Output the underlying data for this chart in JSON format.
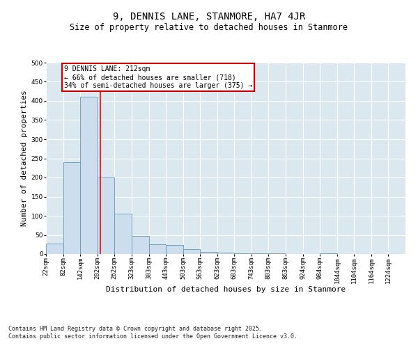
{
  "title": "9, DENNIS LANE, STANMORE, HA7 4JR",
  "subtitle": "Size of property relative to detached houses in Stanmore",
  "xlabel": "Distribution of detached houses by size in Stanmore",
  "ylabel": "Number of detached properties",
  "bin_labels": [
    "22sqm",
    "82sqm",
    "142sqm",
    "202sqm",
    "262sqm",
    "323sqm",
    "383sqm",
    "443sqm",
    "503sqm",
    "563sqm",
    "623sqm",
    "683sqm",
    "743sqm",
    "803sqm",
    "863sqm",
    "924sqm",
    "984sqm",
    "1044sqm",
    "1104sqm",
    "1164sqm",
    "1224sqm"
  ],
  "bar_heights": [
    27,
    240,
    410,
    200,
    105,
    48,
    25,
    24,
    12,
    5,
    4,
    2,
    1,
    1,
    0,
    0,
    1,
    0,
    0,
    0,
    0
  ],
  "bin_edges": [
    22,
    82,
    142,
    202,
    262,
    323,
    383,
    443,
    503,
    563,
    623,
    683,
    743,
    803,
    863,
    924,
    984,
    1044,
    1104,
    1164,
    1224,
    1284
  ],
  "bar_color": "#ccdded",
  "bar_edge_color": "#6699bb",
  "red_line_x": 212,
  "ylim": [
    0,
    500
  ],
  "yticks": [
    0,
    50,
    100,
    150,
    200,
    250,
    300,
    350,
    400,
    450,
    500
  ],
  "annotation_line1": "9 DENNIS LANE: 212sqm",
  "annotation_line2": "← 66% of detached houses are smaller (718)",
  "annotation_line3": "34% of semi-detached houses are larger (375) →",
  "annotation_box_color": "#ffffff",
  "annotation_box_edge": "#cc0000",
  "footer_line1": "Contains HM Land Registry data © Crown copyright and database right 2025.",
  "footer_line2": "Contains public sector information licensed under the Open Government Licence v3.0.",
  "bg_color": "#dce8f0",
  "fig_bg_color": "#ffffff",
  "title_fontsize": 10,
  "subtitle_fontsize": 8.5,
  "axis_label_fontsize": 8,
  "tick_fontsize": 6.5,
  "annotation_fontsize": 7,
  "footer_fontsize": 6
}
